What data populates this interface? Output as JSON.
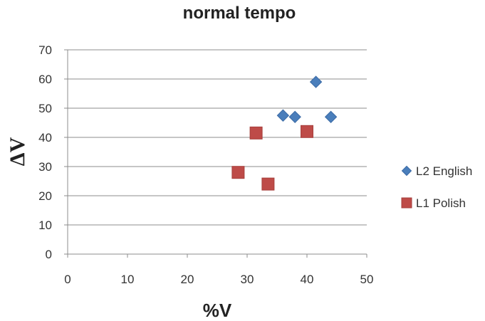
{
  "chart_data": {
    "type": "scatter",
    "title": "normal tempo",
    "xlabel": "%V",
    "ylabel": "ΔV",
    "xlim": [
      0,
      50
    ],
    "ylim": [
      0,
      70
    ],
    "x_ticks": [
      0,
      10,
      20,
      30,
      40,
      50
    ],
    "y_ticks": [
      0,
      10,
      20,
      30,
      40,
      50,
      60,
      70
    ],
    "grid": "horizontal",
    "legend_position": "right",
    "series": [
      {
        "name": "L2 English",
        "marker": "diamond",
        "color": "#4a7ebb",
        "points": [
          {
            "x": 36,
            "y": 47.5
          },
          {
            "x": 38,
            "y": 47
          },
          {
            "x": 41.5,
            "y": 59
          },
          {
            "x": 44,
            "y": 47
          }
        ]
      },
      {
        "name": "L1 Polish",
        "marker": "square",
        "color": "#be4b48",
        "points": [
          {
            "x": 28.5,
            "y": 28
          },
          {
            "x": 31.5,
            "y": 41.5
          },
          {
            "x": 33.5,
            "y": 24
          },
          {
            "x": 40,
            "y": 42
          }
        ]
      }
    ]
  }
}
